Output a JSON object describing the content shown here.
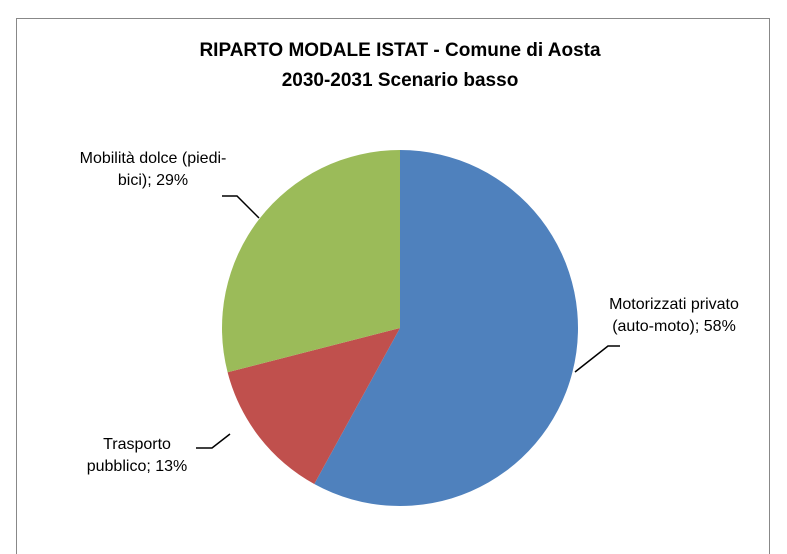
{
  "chart_data": {
    "type": "pie",
    "title": "RIPARTO MODALE ISTAT - Comune di Aosta",
    "subtitle": "2030-2031 Scenario basso",
    "categories": [
      "Motorizzati privato (auto-moto)",
      "Trasporto pubblico",
      "Mobilità dolce (piedi-bici)"
    ],
    "values": [
      58,
      13,
      29
    ],
    "value_labels": [
      "58%",
      "13%",
      "29%"
    ],
    "label_separator": "; ",
    "colors": [
      "#4f81bd",
      "#c0504d",
      "#9bbb59"
    ]
  }
}
